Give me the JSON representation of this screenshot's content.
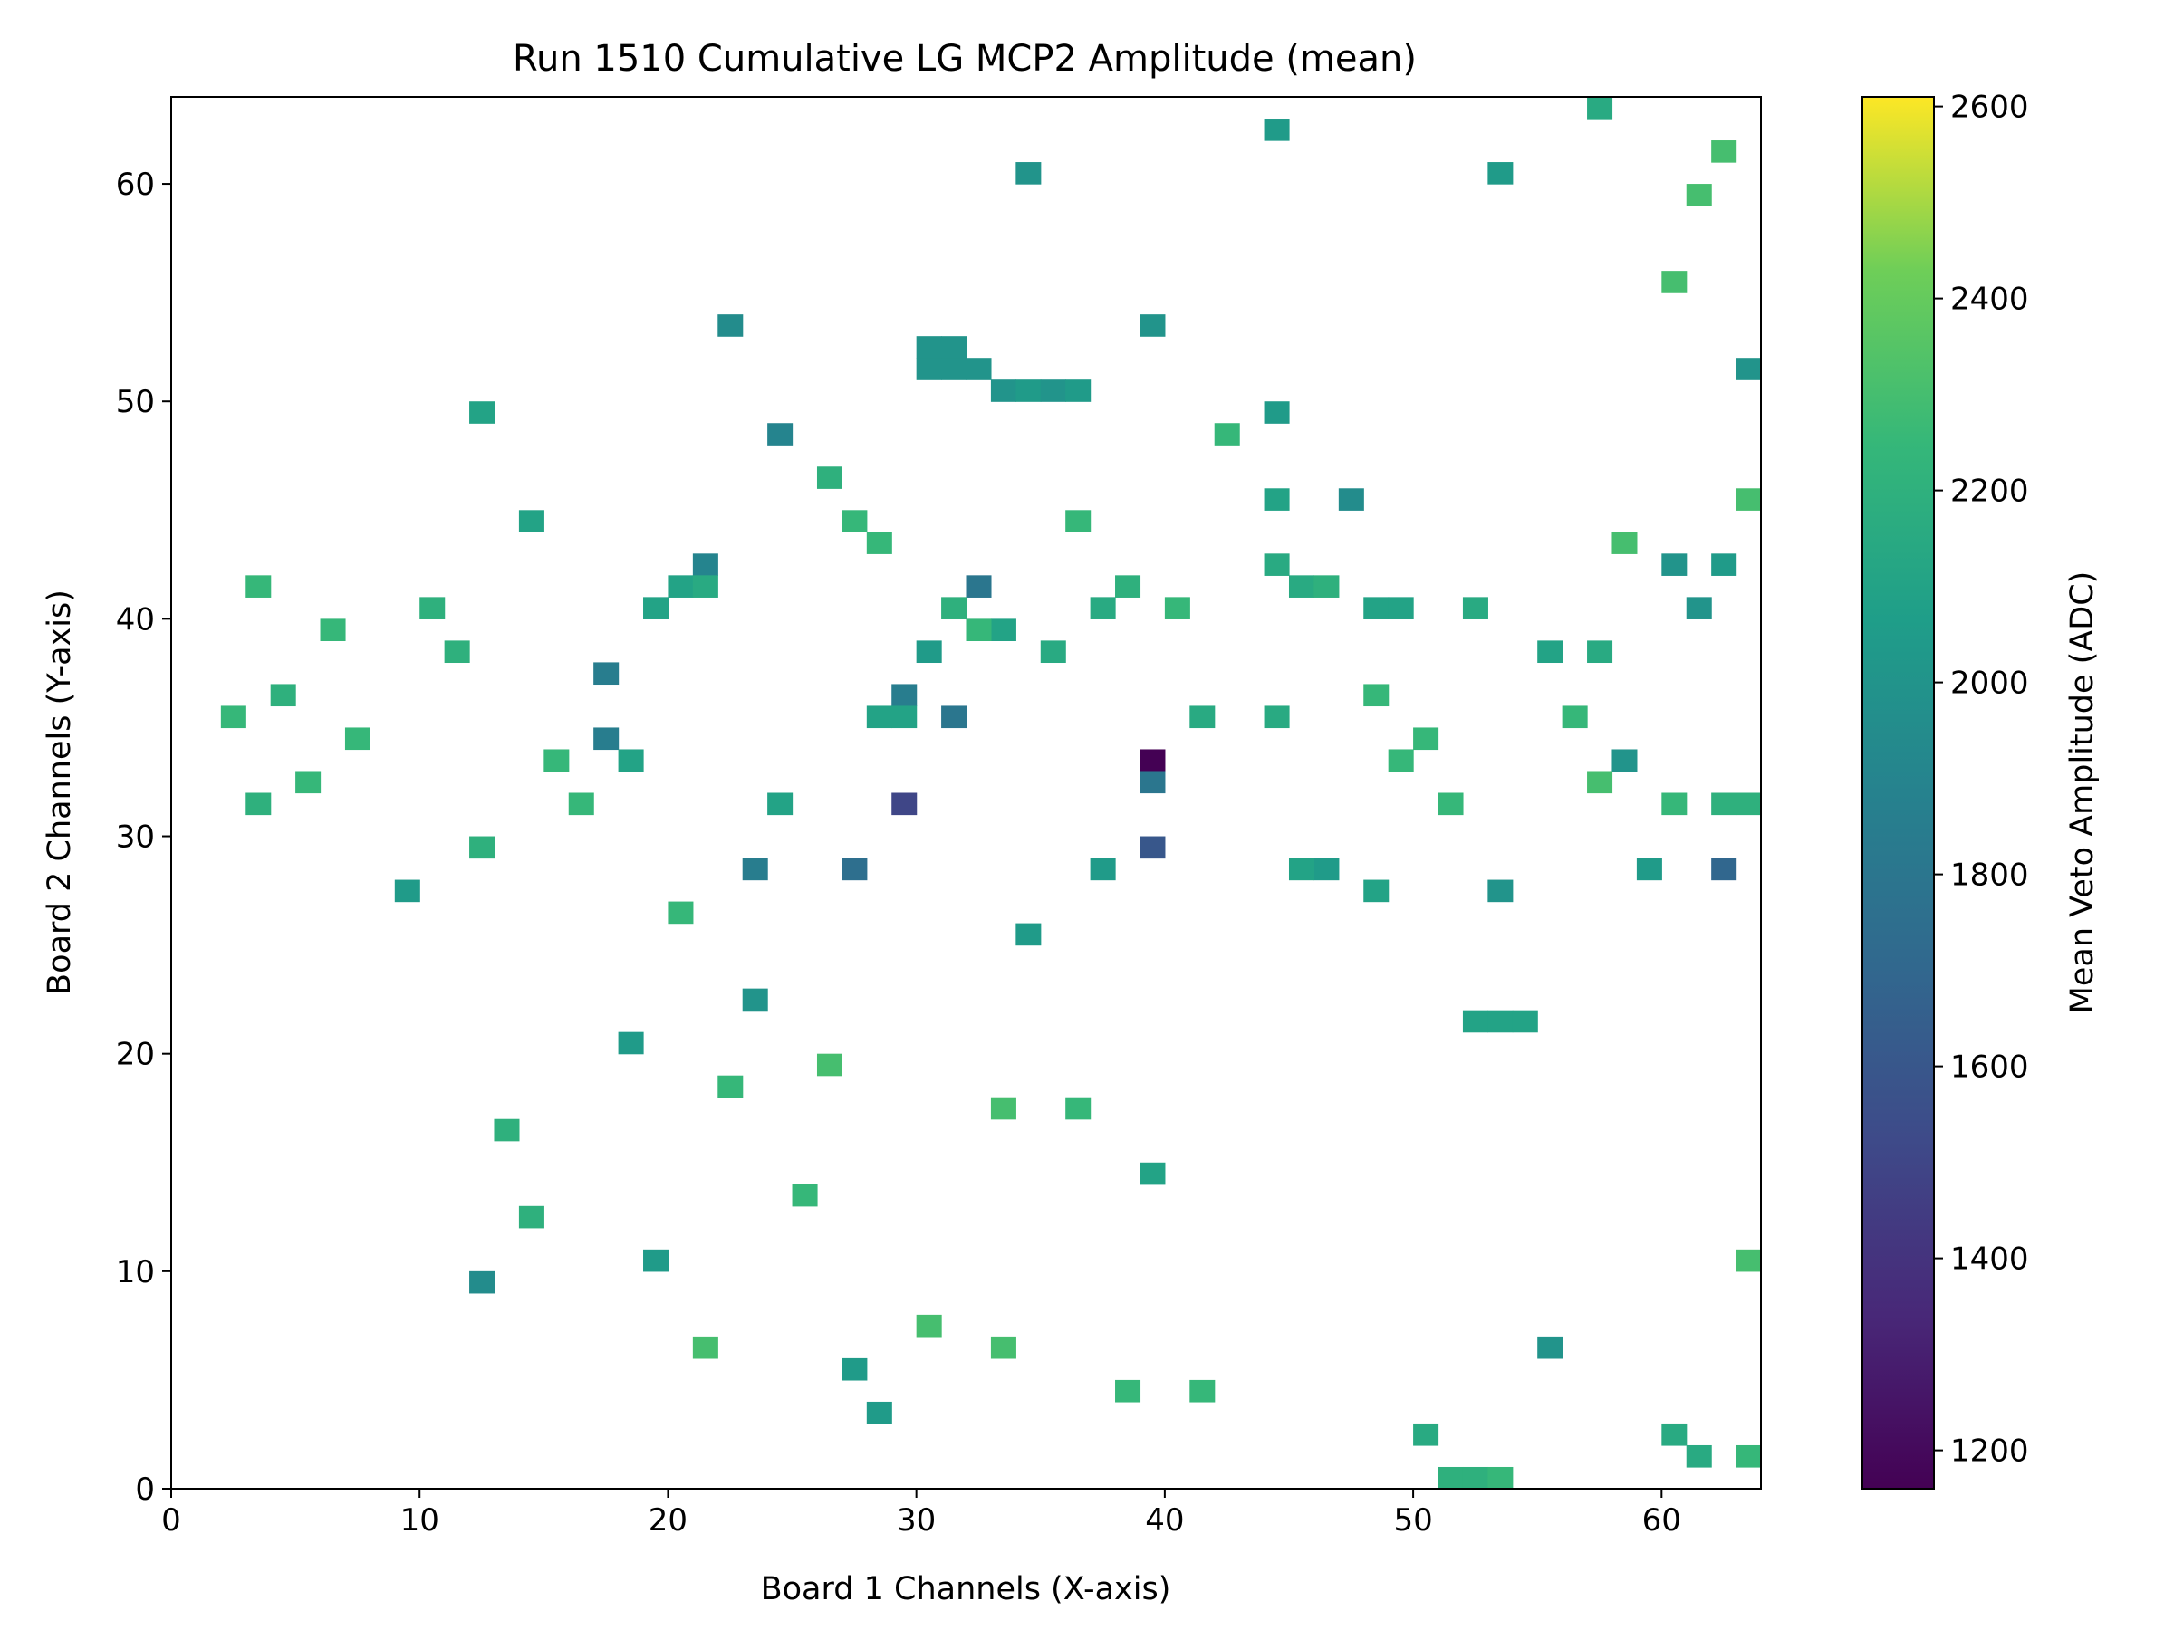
{
  "chart_data": {
    "type": "heatmap",
    "title": "Run 1510 Cumulative LG MCP2 Amplitude (mean)",
    "xlabel": "Board 1 Channels (X-axis)",
    "ylabel": "Board 2 Channels (Y-axis)",
    "colorbar_label": "Mean Veto Amplitude (ADC)",
    "colormap": "viridis",
    "xlim": [
      0,
      64
    ],
    "ylim": [
      0,
      64
    ],
    "clim": [
      1160,
      2610
    ],
    "x_ticks": [
      0,
      10,
      20,
      30,
      40,
      50,
      60
    ],
    "y_ticks": [
      0,
      10,
      20,
      30,
      40,
      50,
      60
    ],
    "colorbar_ticks": [
      1200,
      1400,
      1600,
      1800,
      2000,
      2200,
      2400,
      2600
    ],
    "grid": false,
    "notes": "",
    "cells": [
      [
        39,
        33,
        1160
      ],
      [
        39,
        29,
        1600
      ],
      [
        29,
        31,
        1500
      ],
      [
        62,
        28,
        1700
      ],
      [
        27,
        28,
        1750
      ],
      [
        17,
        37,
        1850
      ],
      [
        17,
        34,
        1850
      ],
      [
        32,
        41,
        1800
      ],
      [
        29,
        36,
        1850
      ],
      [
        31,
        35,
        1800
      ],
      [
        22,
        53,
        1950
      ],
      [
        24,
        48,
        1900
      ],
      [
        21,
        42,
        1900
      ],
      [
        23,
        28,
        1850
      ],
      [
        39,
        32,
        1800
      ],
      [
        31,
        52,
        2000
      ],
      [
        30,
        52,
        2000
      ],
      [
        30,
        51,
        2000
      ],
      [
        31,
        51,
        2000
      ],
      [
        32,
        51,
        2000
      ],
      [
        33,
        50,
        2000
      ],
      [
        34,
        50,
        2050
      ],
      [
        35,
        50,
        2000
      ],
      [
        36,
        50,
        2050
      ],
      [
        39,
        53,
        2000
      ],
      [
        44,
        45,
        2100
      ],
      [
        47,
        45,
        1950
      ],
      [
        44,
        49,
        2050
      ],
      [
        34,
        60,
        2000
      ],
      [
        44,
        62,
        2050
      ],
      [
        53,
        60,
        2050
      ],
      [
        57,
        63,
        2150
      ],
      [
        63,
        51,
        2000
      ],
      [
        62,
        42,
        2050
      ],
      [
        60,
        42,
        2000
      ],
      [
        61,
        40,
        2000
      ],
      [
        58,
        33,
        2000
      ],
      [
        52,
        21,
        2100
      ],
      [
        53,
        21,
        2100
      ],
      [
        54,
        21,
        2100
      ],
      [
        53,
        27,
        2000
      ],
      [
        59,
        28,
        2050
      ],
      [
        55,
        6,
        2000
      ],
      [
        12,
        9,
        1950
      ],
      [
        19,
        10,
        2050
      ],
      [
        27,
        5,
        2050
      ],
      [
        28,
        3,
        2050
      ],
      [
        18,
        20,
        2050
      ],
      [
        23,
        22,
        2000
      ],
      [
        34,
        25,
        2050
      ],
      [
        37,
        28,
        2050
      ],
      [
        39,
        14,
        2100
      ],
      [
        46,
        28,
        2050
      ],
      [
        45,
        28,
        2100
      ],
      [
        48,
        27,
        2100
      ],
      [
        51,
        0,
        2200
      ],
      [
        52,
        0,
        2200
      ],
      [
        53,
        0,
        2250
      ],
      [
        12,
        49,
        2100
      ],
      [
        14,
        44,
        2100
      ],
      [
        19,
        40,
        2100
      ],
      [
        20,
        41,
        2100
      ],
      [
        21,
        41,
        2150
      ],
      [
        18,
        33,
        2100
      ],
      [
        24,
        31,
        2100
      ],
      [
        28,
        35,
        2100
      ],
      [
        29,
        35,
        2100
      ],
      [
        30,
        38,
        2050
      ],
      [
        33,
        39,
        2100
      ],
      [
        35,
        38,
        2150
      ],
      [
        37,
        40,
        2150
      ],
      [
        41,
        35,
        2150
      ],
      [
        44,
        35,
        2150
      ],
      [
        44,
        42,
        2150
      ],
      [
        45,
        41,
        2150
      ],
      [
        48,
        40,
        2100
      ],
      [
        49,
        40,
        2100
      ],
      [
        52,
        40,
        2150
      ],
      [
        55,
        38,
        2100
      ],
      [
        57,
        38,
        2150
      ],
      [
        62,
        31,
        2200
      ],
      [
        63,
        31,
        2200
      ],
      [
        60,
        31,
        2250
      ],
      [
        13,
        16,
        2200
      ],
      [
        14,
        12,
        2200
      ],
      [
        9,
        27,
        2050
      ],
      [
        25,
        13,
        2250
      ],
      [
        50,
        2,
        2150
      ],
      [
        60,
        2,
        2150
      ],
      [
        61,
        1,
        2150
      ],
      [
        63,
        1,
        2250
      ],
      [
        63,
        10,
        2300
      ],
      [
        46,
        41,
        2200
      ],
      [
        10,
        40,
        2200
      ],
      [
        11,
        38,
        2200
      ],
      [
        4,
        36,
        2200
      ],
      [
        3,
        31,
        2200
      ],
      [
        2,
        35,
        2250
      ],
      [
        7,
        34,
        2250
      ],
      [
        5,
        32,
        2250
      ],
      [
        12,
        29,
        2200
      ],
      [
        15,
        33,
        2250
      ],
      [
        16,
        31,
        2250
      ],
      [
        6,
        39,
        2250
      ],
      [
        3,
        41,
        2250
      ],
      [
        26,
        46,
        2200
      ],
      [
        27,
        44,
        2250
      ],
      [
        28,
        43,
        2250
      ],
      [
        31,
        40,
        2200
      ],
      [
        32,
        39,
        2250
      ],
      [
        36,
        44,
        2250
      ],
      [
        38,
        41,
        2200
      ],
      [
        40,
        40,
        2250
      ],
      [
        42,
        48,
        2250
      ],
      [
        48,
        36,
        2250
      ],
      [
        49,
        33,
        2250
      ],
      [
        50,
        34,
        2250
      ],
      [
        51,
        31,
        2250
      ],
      [
        56,
        35,
        2250
      ],
      [
        57,
        32,
        2300
      ],
      [
        63,
        45,
        2300
      ],
      [
        58,
        43,
        2300
      ],
      [
        60,
        55,
        2300
      ],
      [
        61,
        59,
        2300
      ],
      [
        62,
        61,
        2300
      ],
      [
        20,
        26,
        2250
      ],
      [
        22,
        18,
        2250
      ],
      [
        26,
        19,
        2300
      ],
      [
        33,
        17,
        2300
      ],
      [
        36,
        17,
        2250
      ],
      [
        41,
        4,
        2250
      ],
      [
        38,
        4,
        2250
      ],
      [
        33,
        6,
        2300
      ],
      [
        30,
        7,
        2300
      ],
      [
        21,
        6,
        2300
      ]
    ]
  }
}
